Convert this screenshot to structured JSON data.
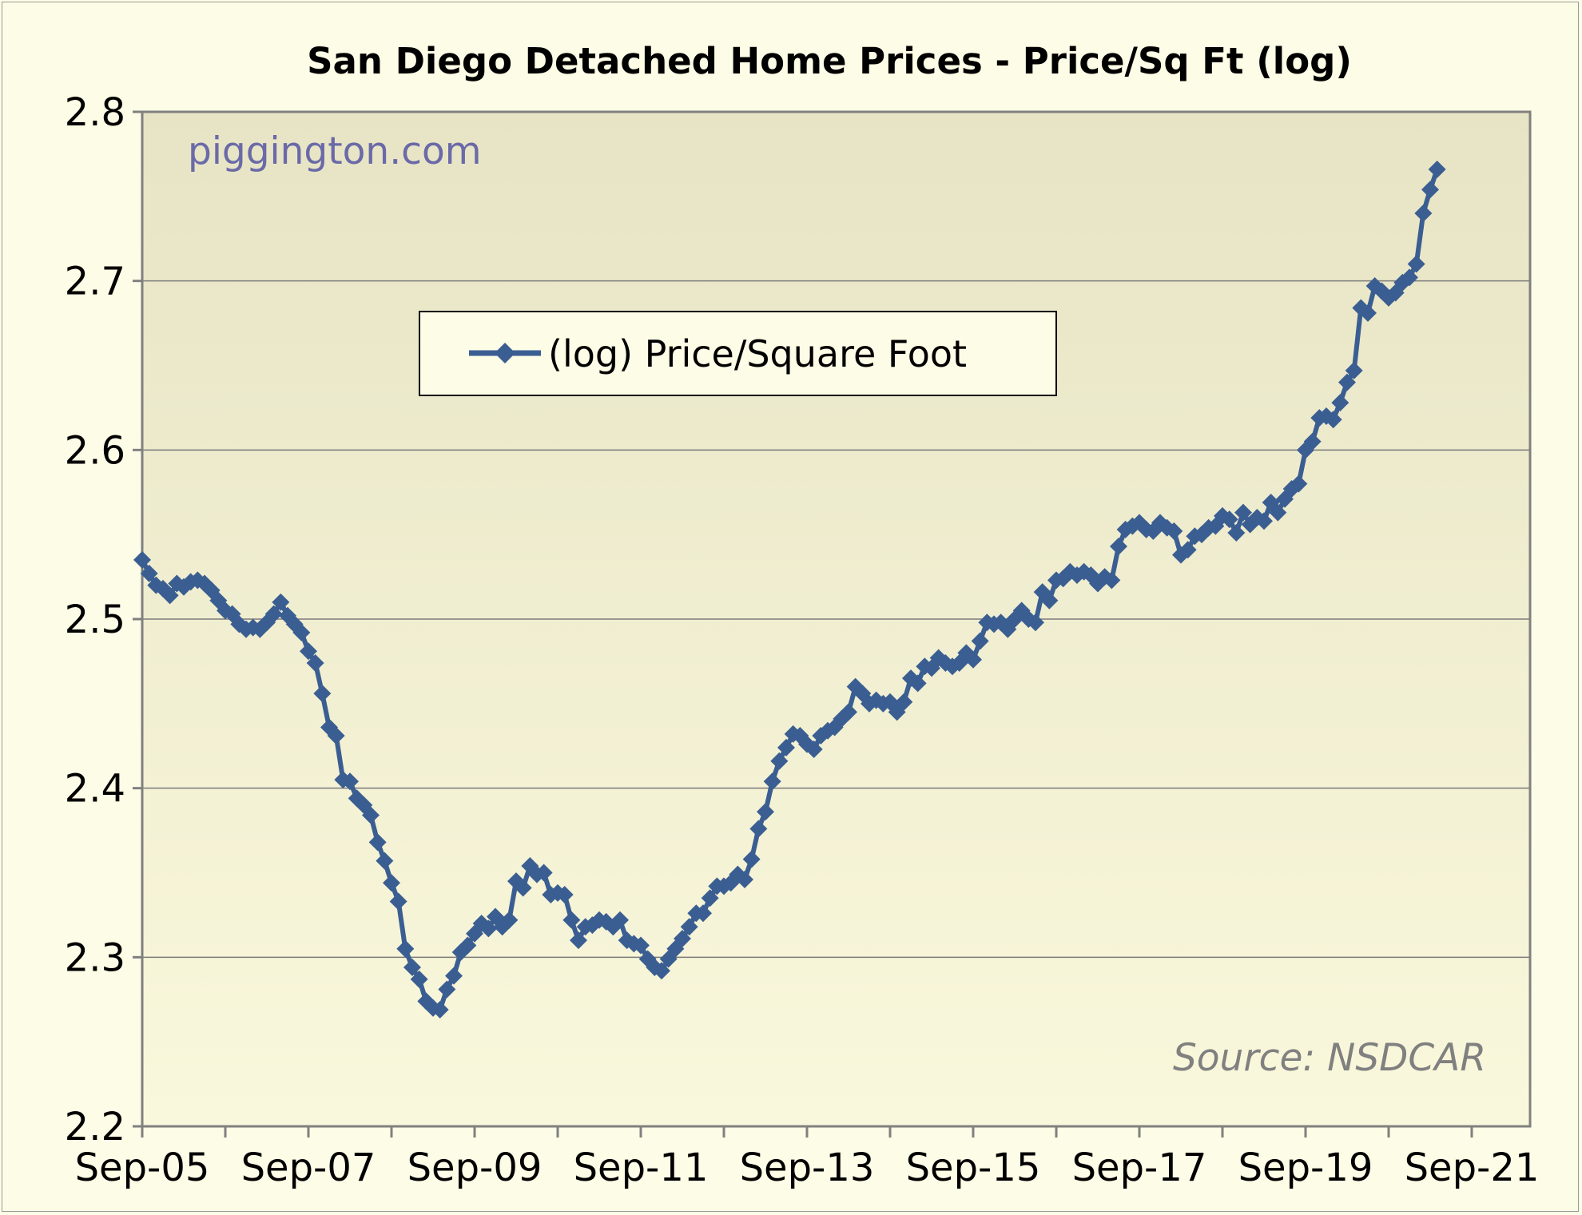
{
  "chart_data": {
    "type": "line",
    "title": "San Diego Detached Home Prices - Price/Sq Ft (log)",
    "xlabel": "",
    "ylabel": "",
    "ylim": [
      2.2,
      2.8
    ],
    "yticks": [
      "2.2",
      "2.3",
      "2.4",
      "2.5",
      "2.6",
      "2.7",
      "2.8"
    ],
    "xticks": [
      "Sep-05",
      "Sep-07",
      "Sep-09",
      "Sep-11",
      "Sep-13",
      "Sep-15",
      "Sep-17",
      "Sep-19",
      "Sep-21"
    ],
    "x_start": "Sep-05",
    "x_end": "Sep-22",
    "grid": "horizontal",
    "legend_position": "upper-center",
    "watermark": "piggington.com",
    "source": "Source: NSDCAR",
    "series": [
      {
        "name": "(log) Price/Square Foot",
        "color": "#3b5e92",
        "marker": "diamond",
        "values": [
          2.535,
          2.527,
          2.52,
          2.518,
          2.514,
          2.521,
          2.519,
          2.522,
          2.523,
          2.521,
          2.517,
          2.511,
          2.505,
          2.503,
          2.497,
          2.494,
          2.495,
          2.494,
          2.498,
          2.503,
          2.51,
          2.502,
          2.497,
          2.492,
          2.481,
          2.474,
          2.456,
          2.436,
          2.431,
          2.405,
          2.404,
          2.394,
          2.39,
          2.384,
          2.368,
          2.357,
          2.344,
          2.333,
          2.305,
          2.294,
          2.287,
          2.274,
          2.27,
          2.269,
          2.281,
          2.289,
          2.303,
          2.307,
          2.314,
          2.32,
          2.317,
          2.324,
          2.318,
          2.322,
          2.345,
          2.341,
          2.354,
          2.349,
          2.35,
          2.337,
          2.338,
          2.337,
          2.322,
          2.31,
          2.318,
          2.319,
          2.322,
          2.321,
          2.318,
          2.322,
          2.31,
          2.308,
          2.307,
          2.299,
          2.294,
          2.292,
          2.299,
          2.305,
          2.311,
          2.318,
          2.326,
          2.326,
          2.335,
          2.342,
          2.342,
          2.344,
          2.349,
          2.346,
          2.358,
          2.376,
          2.386,
          2.404,
          2.416,
          2.424,
          2.432,
          2.431,
          2.426,
          2.423,
          2.431,
          2.434,
          2.436,
          2.441,
          2.445,
          2.46,
          2.456,
          2.45,
          2.452,
          2.45,
          2.451,
          2.445,
          2.451,
          2.465,
          2.462,
          2.472,
          2.471,
          2.477,
          2.474,
          2.472,
          2.474,
          2.48,
          2.476,
          2.487,
          2.498,
          2.497,
          2.498,
          2.494,
          2.5,
          2.505,
          2.5,
          2.498,
          2.516,
          2.511,
          2.523,
          2.524,
          2.528,
          2.526,
          2.528,
          2.526,
          2.521,
          2.525,
          2.523,
          2.543,
          2.553,
          2.555,
          2.557,
          2.553,
          2.552,
          2.557,
          2.554,
          2.552,
          2.538,
          2.541,
          2.549,
          2.55,
          2.554,
          2.555,
          2.561,
          2.559,
          2.551,
          2.563,
          2.556,
          2.56,
          2.558,
          2.569,
          2.563,
          2.571,
          2.577,
          2.58,
          2.6,
          2.605,
          2.619,
          2.62,
          2.618,
          2.628,
          2.64,
          2.647,
          2.684,
          2.681,
          2.697,
          2.694,
          2.69,
          2.693,
          2.699,
          2.702,
          2.71,
          2.74,
          2.754,
          2.766
        ]
      }
    ]
  }
}
